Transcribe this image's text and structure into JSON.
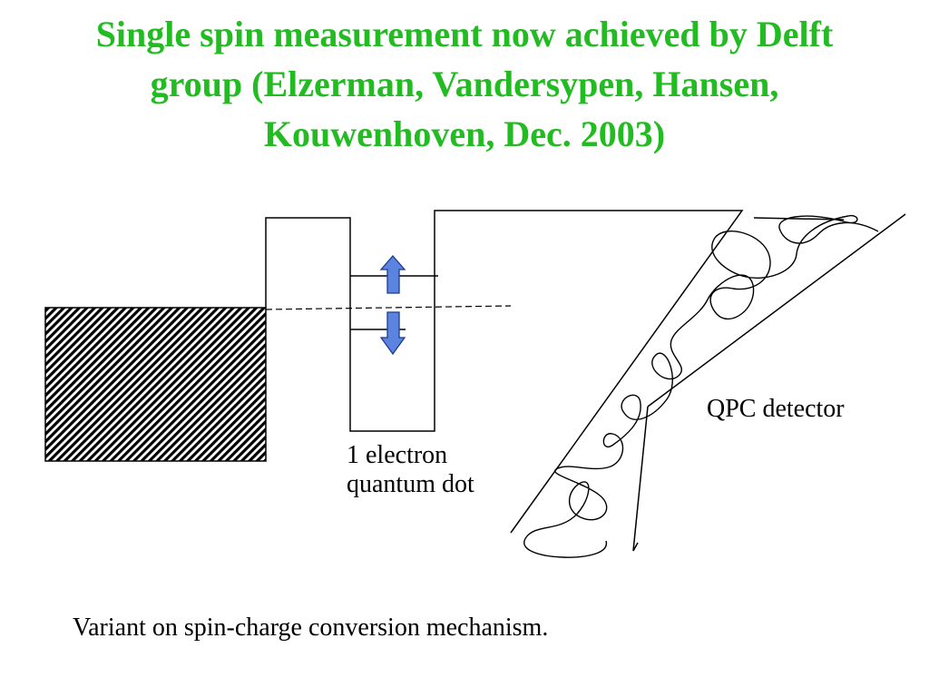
{
  "title": {
    "lines": [
      "Single spin measurement now achieved by Delft",
      "group (Elzerman, Vandersypen, Hansen,",
      "Kouwenhoven, Dec. 2003)"
    ],
    "color": "#22bb22"
  },
  "labels": {
    "dot_line1": "1 electron",
    "dot_line2": "quantum dot",
    "qpc": "QPC detector"
  },
  "caption": "Variant on spin-charge conversion mechanism.",
  "colors": {
    "arrow_fill": "#5b84e0",
    "arrow_stroke": "#1f3a8a",
    "line": "#000000"
  },
  "icons": {
    "spin_up": "spin-up-arrow-icon",
    "spin_down": "spin-down-arrow-icon"
  }
}
